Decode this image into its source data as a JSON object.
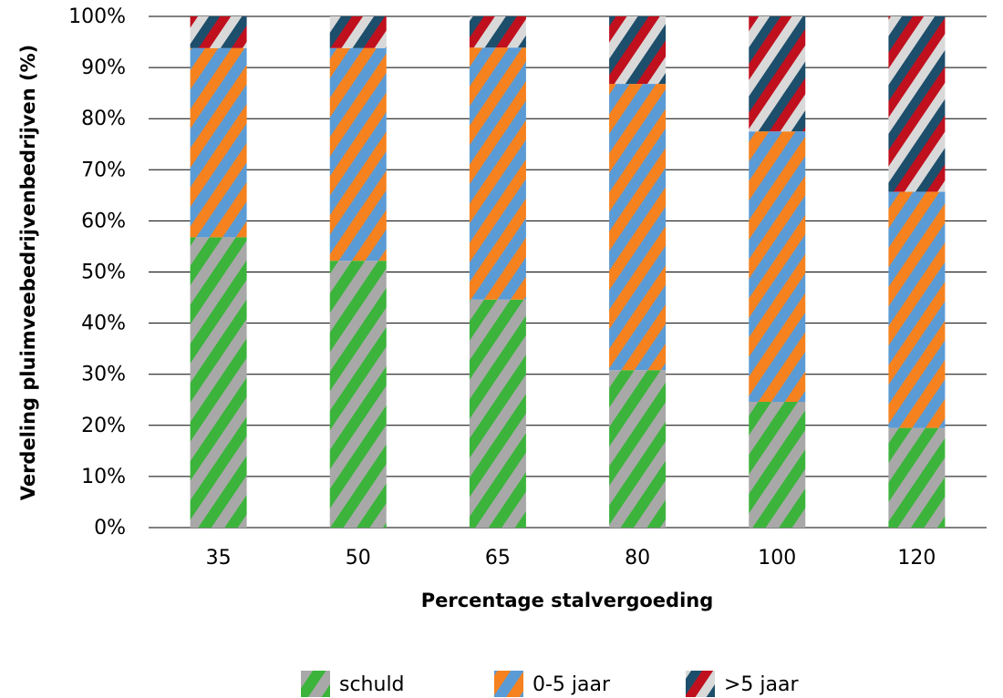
{
  "chart_data": {
    "type": "bar",
    "stacked": true,
    "normalized_percent": true,
    "xlabel": "Percentage stalvergoeding",
    "ylabel": "Verdeling pluimveebedrijvenbedrijven (%)",
    "categories": [
      "35",
      "50",
      "65",
      "80",
      "100",
      "120"
    ],
    "ylim": [
      0,
      100
    ],
    "yticks": [
      "0%",
      "10%",
      "20%",
      "30%",
      "40%",
      "50%",
      "60%",
      "70%",
      "80%",
      "90%",
      "100%"
    ],
    "grid": "horizontal",
    "legend_position": "bottom",
    "series": [
      {
        "name": "schuld",
        "values": [
          56.8,
          52.2,
          44.6,
          30.8,
          24.6,
          19.5
        ],
        "colors": [
          "#3cb43c",
          "#a8a8a8"
        ]
      },
      {
        "name": "0-5 jaar",
        "values": [
          37.0,
          41.6,
          49.3,
          56.0,
          52.9,
          46.2
        ],
        "colors": [
          "#f5821f",
          "#5b9bd5"
        ]
      },
      {
        "name": ">5 jaar",
        "values": [
          6.2,
          6.2,
          6.1,
          13.2,
          22.5,
          34.3
        ],
        "colors": [
          "#c0101e",
          "#d9d9d9",
          "#1d4e6b"
        ]
      }
    ]
  }
}
